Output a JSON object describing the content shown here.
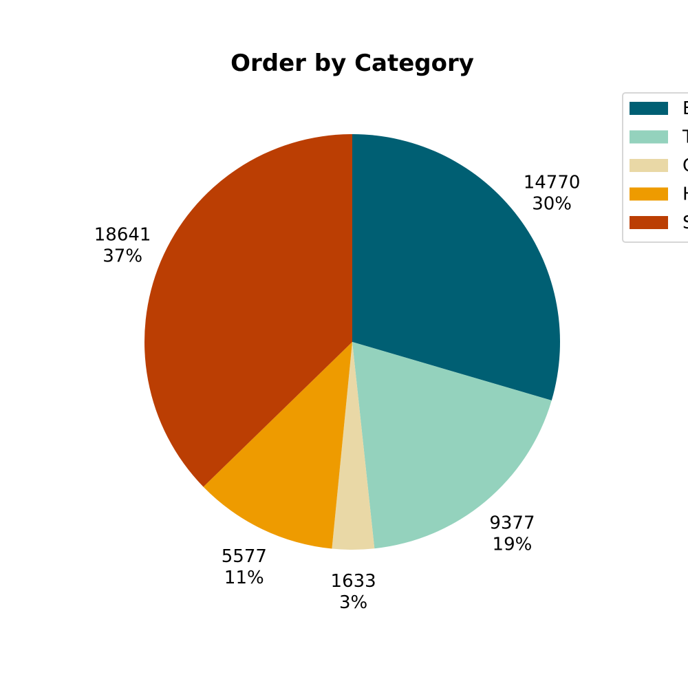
{
  "chart_data": {
    "type": "pie",
    "title": "Order by Category",
    "categories": [
      "E",
      "T",
      "C",
      "H",
      "S"
    ],
    "values": [
      14770,
      9377,
      1633,
      5577,
      18641
    ],
    "percent_labels": [
      "30%",
      "19%",
      "3%",
      "11%",
      "37%"
    ],
    "colors": [
      "#005F73",
      "#94D2BD",
      "#E9D8A6",
      "#EE9B00",
      "#BB3E03"
    ],
    "start_angle_deg": 90,
    "direction": "clockwise",
    "legend_position": "top-right",
    "legend_note": "Legend entry text is cut off by the right edge of the image; only the first letter of each entry is visible."
  }
}
